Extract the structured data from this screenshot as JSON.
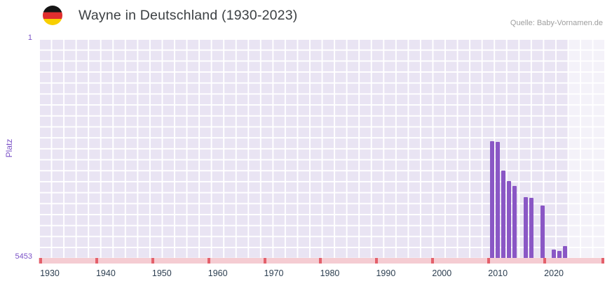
{
  "header": {
    "title": "Wayne in Deutschland (1930-2023)",
    "source": "Quelle: Baby-Vornamen.de"
  },
  "flag_icon": {
    "label": "germany-flag",
    "stripes": [
      "#151515",
      "#e02e2e",
      "#f8cf00"
    ]
  },
  "chart_data": {
    "type": "bar",
    "title": "Wayne in Deutschland (1930-2023)",
    "xlabel": "",
    "ylabel": "Platz",
    "y_axis": {
      "min": 1,
      "max": 5453,
      "inverted": true,
      "top_label": "1",
      "bottom_label": "5453"
    },
    "x_axis": {
      "min": 1928,
      "max": 2029,
      "tick_years": [
        1930,
        1940,
        1950,
        1960,
        1970,
        1980,
        1990,
        2000,
        2010,
        2020
      ],
      "right_cap_tick": true
    },
    "series": [
      {
        "name": "Platz",
        "points": [
          {
            "year": 2009,
            "rank": 2550
          },
          {
            "year": 2010,
            "rank": 2570
          },
          {
            "year": 2011,
            "rank": 3290
          },
          {
            "year": 2012,
            "rank": 3550
          },
          {
            "year": 2013,
            "rank": 3660
          },
          {
            "year": 2015,
            "rank": 3940
          },
          {
            "year": 2016,
            "rank": 3960
          },
          {
            "year": 2018,
            "rank": 4150
          },
          {
            "year": 2020,
            "rank": 5240
          },
          {
            "year": 2021,
            "rank": 5270
          },
          {
            "year": 2022,
            "rank": 5150
          }
        ]
      }
    ],
    "highlight_band": {
      "from_year": 2022.5,
      "to_year": 2029
    },
    "grid": true,
    "legend": false
  },
  "colors": {
    "bar": "#8a57c5",
    "grid_cell": "#e9e4f3",
    "grid_line": "#ffffff",
    "strip": "#f5ccd2",
    "strip_tick": "#e4606b",
    "axis_purple": "#7b52c7",
    "x_label": "#2c3e50",
    "title": "#3c4043",
    "source": "#9e9e9e",
    "highlight": "rgba(255,255,255,0.5)"
  }
}
